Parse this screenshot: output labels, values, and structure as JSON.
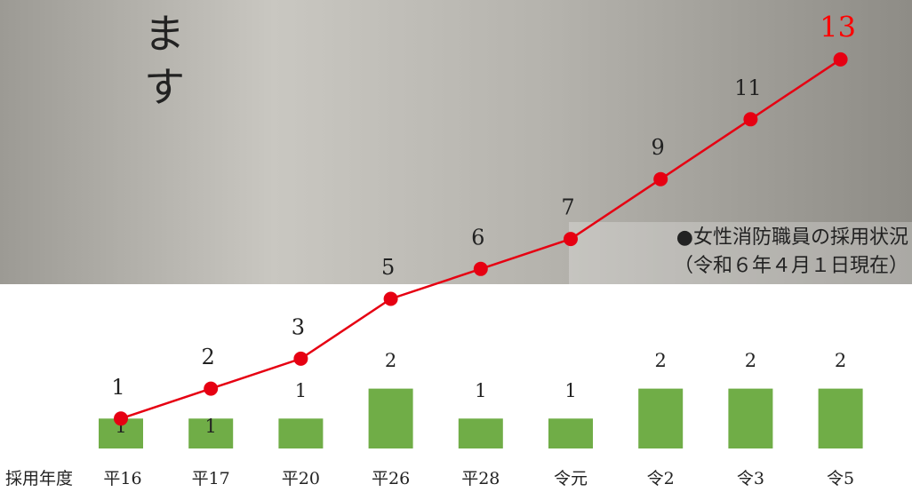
{
  "chart_data": {
    "type": "combo",
    "title": "●女性消防職員の採用状況",
    "subtitle": "（令和６年４月１日現在）",
    "x_label": "採用年度",
    "annotation": [
      "ま",
      "す"
    ],
    "categories": [
      "平16",
      "平17",
      "平20",
      "平26",
      "平28",
      "令元",
      "令2",
      "令3",
      "令5"
    ],
    "series": [
      {
        "type": "bar",
        "color": "#70ad47",
        "values": [
          1,
          1,
          1,
          2,
          1,
          1,
          2,
          2,
          2
        ]
      },
      {
        "type": "line",
        "color": "#e60012",
        "last_label_color": "#ff0000",
        "values": [
          1,
          2,
          3,
          5,
          6,
          7,
          9,
          11,
          13
        ]
      }
    ]
  }
}
